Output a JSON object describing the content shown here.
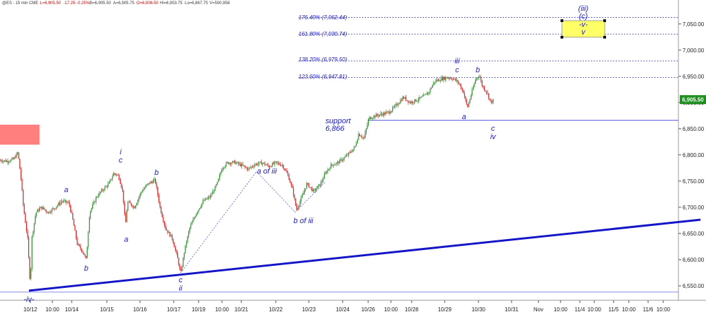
{
  "header": {
    "symbol": "@ES - 15 min CME",
    "last": "L=6,905.50",
    "change": "-17.25",
    "change_pct": "-0.25%",
    "bid": "B=6,905.50",
    "ask": "A=6,905.75",
    "open": "O=6,906.50",
    "high": "Hi=6,953.75",
    "low": "Lo=6,867.75",
    "volume": "V=500,958"
  },
  "colors": {
    "up_candle": "#2e8b2e",
    "down_candle": "#d42020",
    "trendline": "#1515c8",
    "label": "#1a1acc",
    "price_tag": "#1f8f1f",
    "target_box": "#ffff66"
  },
  "current_price_label": "6,905.50",
  "fib_levels": [
    {
      "label": "176.40% (7,062.44)",
      "price": 7062.44
    },
    {
      "label": "161.80% (7,030.74)",
      "price": 7030.74
    },
    {
      "label": "138.20% (6,979.50)",
      "price": 6979.5
    },
    {
      "label": "123.60% (6,947.81)",
      "price": 6947.81
    }
  ],
  "support": {
    "title": "support",
    "value": "6,866",
    "price": 6866
  },
  "target_box": {
    "labels": [
      "(iii)",
      "(c)",
      "-v-",
      "v"
    ]
  },
  "chart_data": {
    "type": "candlestick",
    "y_axis": {
      "range": [
        6530,
        7110
      ],
      "ticks": [
        "6,550.00",
        "6,600.00",
        "6,650.00",
        "6,700.00",
        "6,750.00",
        "6,800.00",
        "6,850.00",
        "6,900.00",
        "6,950.00",
        "7,000.00",
        "7,050.00"
      ],
      "tick_values": [
        6550,
        6600,
        6650,
        6700,
        6750,
        6800,
        6850,
        6900,
        6950,
        7000,
        7050
      ]
    },
    "x_axis": {
      "ticks": [
        "10/12",
        "10:00",
        "10/14",
        "10/15",
        "10/16",
        "10/17",
        "10/19",
        "10:00",
        "10/21",
        "10/22",
        "10/23",
        "10/24",
        "10/26",
        "10:00",
        "10/28",
        "10/29",
        "10/30",
        "10/31",
        "Nov",
        "10:00",
        "11/4",
        "10:00",
        "11/5",
        "10:00",
        "11/6",
        "10:00"
      ]
    },
    "price_path": [
      [
        0,
        6790
      ],
      [
        10,
        6788
      ],
      [
        20,
        6792
      ],
      [
        26,
        6805
      ],
      [
        30,
        6760
      ],
      [
        34,
        6700
      ],
      [
        40,
        6640
      ],
      [
        44,
        6548
      ],
      [
        46,
        6640
      ],
      [
        52,
        6690
      ],
      [
        60,
        6700
      ],
      [
        70,
        6690
      ],
      [
        80,
        6700
      ],
      [
        90,
        6712
      ],
      [
        100,
        6708
      ],
      [
        105,
        6680
      ],
      [
        112,
        6630
      ],
      [
        120,
        6615
      ],
      [
        125,
        6600
      ],
      [
        130,
        6690
      ],
      [
        140,
        6720
      ],
      [
        150,
        6735
      ],
      [
        158,
        6745
      ],
      [
        165,
        6765
      ],
      [
        172,
        6760
      ],
      [
        178,
        6730
      ],
      [
        182,
        6665
      ],
      [
        185,
        6710
      ],
      [
        195,
        6700
      ],
      [
        205,
        6730
      ],
      [
        215,
        6745
      ],
      [
        225,
        6752
      ],
      [
        232,
        6700
      ],
      [
        240,
        6660
      ],
      [
        250,
        6640
      ],
      [
        258,
        6600
      ],
      [
        262,
        6573
      ],
      [
        268,
        6620
      ],
      [
        275,
        6660
      ],
      [
        285,
        6690
      ],
      [
        295,
        6712
      ],
      [
        305,
        6720
      ],
      [
        315,
        6745
      ],
      [
        322,
        6775
      ],
      [
        330,
        6785
      ],
      [
        340,
        6786
      ],
      [
        350,
        6780
      ],
      [
        360,
        6773
      ],
      [
        370,
        6782
      ],
      [
        380,
        6785
      ],
      [
        390,
        6778
      ],
      [
        400,
        6785
      ],
      [
        410,
        6780
      ],
      [
        418,
        6760
      ],
      [
        425,
        6730
      ],
      [
        430,
        6695
      ],
      [
        438,
        6720
      ],
      [
        445,
        6745
      ],
      [
        455,
        6730
      ],
      [
        465,
        6745
      ],
      [
        472,
        6765
      ],
      [
        480,
        6780
      ],
      [
        490,
        6785
      ],
      [
        500,
        6795
      ],
      [
        508,
        6805
      ],
      [
        515,
        6815
      ],
      [
        520,
        6840
      ],
      [
        528,
        6832
      ],
      [
        535,
        6870
      ],
      [
        545,
        6875
      ],
      [
        555,
        6878
      ],
      [
        565,
        6882
      ],
      [
        575,
        6895
      ],
      [
        585,
        6910
      ],
      [
        595,
        6900
      ],
      [
        605,
        6905
      ],
      [
        615,
        6912
      ],
      [
        622,
        6920
      ],
      [
        630,
        6940
      ],
      [
        640,
        6945
      ],
      [
        650,
        6948
      ],
      [
        658,
        6945
      ],
      [
        665,
        6938
      ],
      [
        672,
        6920
      ],
      [
        678,
        6890
      ],
      [
        684,
        6918
      ],
      [
        690,
        6945
      ],
      [
        695,
        6952
      ],
      [
        700,
        6930
      ],
      [
        706,
        6920
      ],
      [
        712,
        6900
      ],
      [
        716,
        6905
      ]
    ]
  },
  "wave_labels": [
    {
      "text": "-iv-",
      "bold": false
    },
    {
      "text": "a",
      "bold": false
    },
    {
      "text": "b",
      "bold": false
    },
    {
      "text": "i",
      "bold": false
    },
    {
      "text": "c",
      "bold": false
    },
    {
      "text": "a",
      "bold": false
    },
    {
      "text": "b",
      "bold": false
    },
    {
      "text": "c",
      "bold": false
    },
    {
      "text": "ii",
      "bold": false
    },
    {
      "text": "a of iii",
      "bold": false
    },
    {
      "text": "b of iii",
      "bold": false
    },
    {
      "text": "iii",
      "bold": false
    },
    {
      "text": "c",
      "bold": false
    },
    {
      "text": "a",
      "bold": false
    },
    {
      "text": "b",
      "bold": false
    },
    {
      "text": "c",
      "bold": false
    },
    {
      "text": "iv",
      "bold": false
    }
  ]
}
